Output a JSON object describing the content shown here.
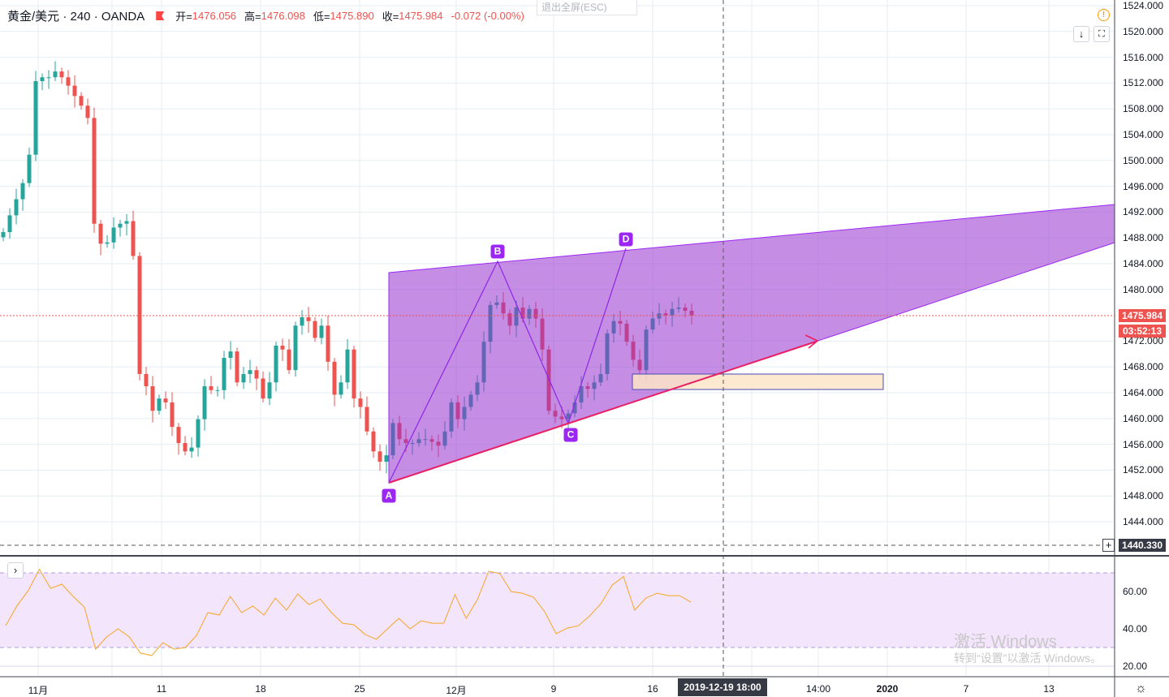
{
  "header": {
    "symbol": "黄金/美元 · 240 · OANDA",
    "open_label": "开=",
    "open": "1476.056",
    "high_label": "高=",
    "high": "1476.098",
    "low_label": "低=",
    "low": "1475.890",
    "close_label": "收=",
    "close": "1475.984",
    "change": "-0.072 (-0.00%)"
  },
  "exit_fullscreen": "退出全屏(ESC)",
  "icons": {
    "warning": "!",
    "down_arrow": "↓",
    "fullscreen": "⛶",
    "collapse": "›",
    "gear": "☼",
    "plus": "+"
  },
  "colors": {
    "up": "#26a69a",
    "down": "#ef5350",
    "pattern": "#9c27f5",
    "arrow": "#e91e63",
    "rsi": "#f5a623"
  },
  "price_axis": {
    "labels": [
      "1524.000",
      "1520.000",
      "1516.000",
      "1512.000",
      "1508.000",
      "1504.000",
      "1500.000",
      "1496.000",
      "1492.000",
      "1488.000",
      "1484.000",
      "1480.000",
      "1472.000",
      "1468.000",
      "1464.000",
      "1460.000",
      "1456.000",
      "1452.000",
      "1448.000",
      "1444.000"
    ],
    "last_price": "1475.984",
    "countdown": "03:52:13",
    "crosshair_price": "1440.330"
  },
  "rsi_axis": {
    "labels": [
      "60.00",
      "40.00",
      "20.00"
    ]
  },
  "time_axis": {
    "labels": [
      "11月",
      "11",
      "18",
      "25",
      "12月",
      "9",
      "16",
      "14:00",
      "2020",
      "7",
      "13"
    ],
    "crosshair": "2019-12-19   18:00"
  },
  "pattern_points": [
    "A",
    "B",
    "C",
    "D"
  ],
  "watermark": {
    "line1": "激活 Windows",
    "line2": "转到“设置”以激活 Windows。"
  },
  "chart_data": {
    "type": "candlestick",
    "title": "黄金/美元 · 240 · OANDA",
    "ylim": [
      1440,
      1524
    ],
    "closes": [
      1488.9,
      1491.5,
      1494.0,
      1496.5,
      1500.9,
      1512.3,
      1512.9,
      1512.9,
      1513.8,
      1512.9,
      1511.6,
      1510.0,
      1508.5,
      1506.6,
      1490.2,
      1487.1,
      1487.3,
      1489.6,
      1490.2,
      1490.6,
      1485.2,
      1466.9,
      1465.0,
      1461.2,
      1463.1,
      1462.5,
      1458.7,
      1456.2,
      1454.9,
      1455.5,
      1459.9,
      1465.0,
      1464.4,
      1464.4,
      1469.4,
      1470.4,
      1465.6,
      1466.9,
      1467.5,
      1466.2,
      1463.1,
      1465.6,
      1471.3,
      1470.7,
      1467.5,
      1474.4,
      1475.7,
      1475.1,
      1472.5,
      1474.4,
      1468.8,
      1463.7,
      1465.6,
      1470.7,
      1463.1,
      1461.8,
      1458.0,
      1454.9,
      1453.3,
      1454.3,
      1459.3,
      1456.8,
      1456.2,
      1456.2,
      1456.8,
      1456.8,
      1456.4,
      1455.8,
      1458.0,
      1462.5,
      1459.9,
      1461.8,
      1463.7,
      1465.6,
      1471.9,
      1477.6,
      1478.0,
      1476.3,
      1474.4,
      1477.2,
      1475.5,
      1477.0,
      1475.5,
      1470.7,
      1461.2,
      1460.3,
      1459.9,
      1460.8,
      1462.5,
      1465.0,
      1464.6,
      1465.6,
      1466.9,
      1473.2,
      1475.1,
      1474.7,
      1471.9,
      1469.1,
      1467.5,
      1473.8,
      1475.5,
      1476.3,
      1476.0,
      1477.0,
      1477.2,
      1476.7,
      1476.0
    ],
    "rsi": {
      "ylim": [
        17,
        75
      ],
      "upper_band": 70,
      "lower_band": 30,
      "values": [
        41.7,
        52.3,
        60.4,
        71.9,
        61.7,
        63.9,
        57.4,
        51.7,
        29.1,
        35.7,
        40,
        35.7,
        27,
        25.7,
        32.6,
        29.1,
        30,
        36.5,
        48.7,
        47.4,
        57.4,
        48.7,
        52.2,
        47.4,
        56.5,
        50,
        58.7,
        53,
        56,
        48.7,
        43,
        42.2,
        37,
        34.4,
        40,
        45.6,
        40,
        44.3,
        43,
        43,
        58.3,
        45.6,
        55.7,
        70.9,
        69.6,
        60,
        59.1,
        56.9,
        49.1,
        37.4,
        40.4,
        41.7,
        47,
        53.5,
        63.5,
        68,
        50,
        56.5,
        59.1,
        57.8,
        57.8,
        54.3
      ]
    }
  }
}
